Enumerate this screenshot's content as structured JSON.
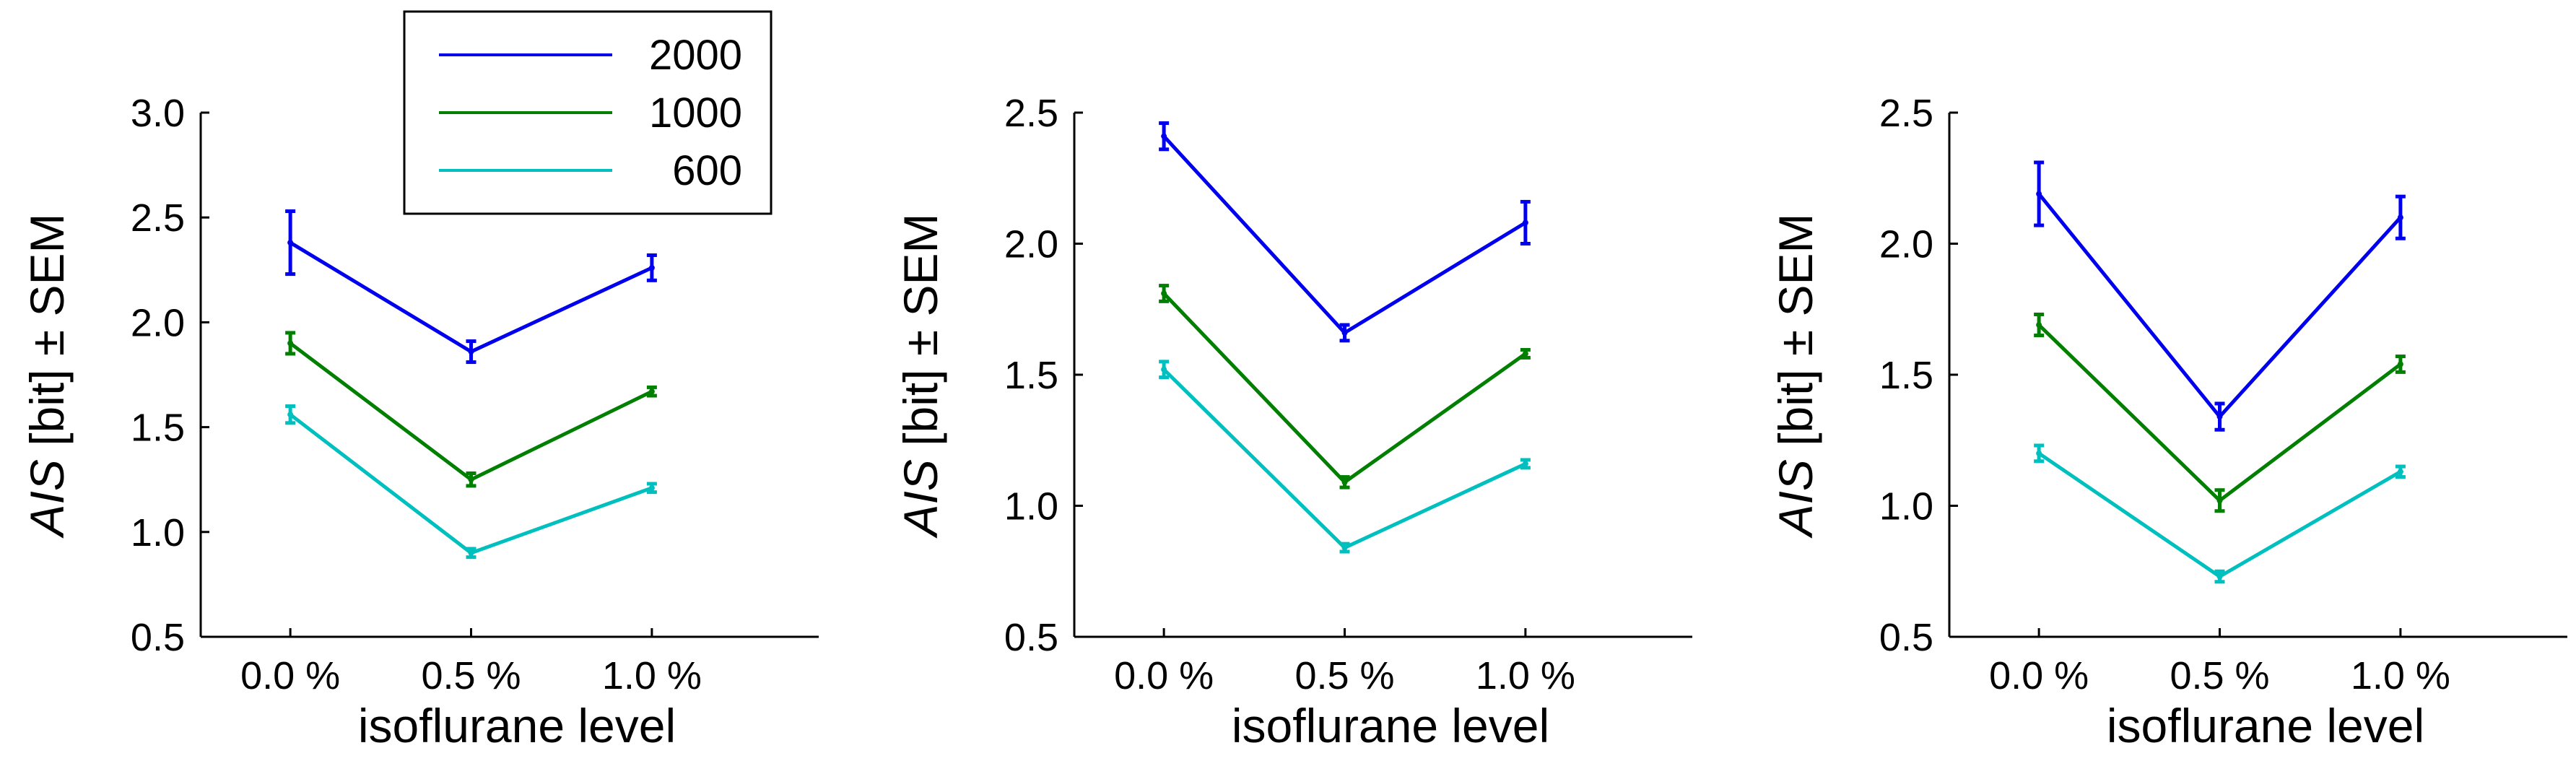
{
  "legend": {
    "entries": [
      {
        "label": "2000",
        "color": "#0000ee"
      },
      {
        "label": "1000",
        "color": "#007f00"
      },
      {
        "label": "600",
        "color": "#00bfbf"
      }
    ]
  },
  "chart_data": [
    {
      "type": "line",
      "categories": [
        "0.0 %",
        "0.5 %",
        "1.0 %"
      ],
      "xlabel": "isoflurane level",
      "ylabel_italic": "AIS",
      "ylabel_rest": " [bit] ± SEM",
      "ylim": [
        0.5,
        3.0
      ],
      "yticks": [
        0.5,
        1.0,
        1.5,
        2.0,
        2.5,
        3.0
      ],
      "ytick_labels": [
        "0.5",
        "1.0",
        "1.5",
        "2.0",
        "2.5",
        "3.0"
      ],
      "legend_position": "top",
      "series": [
        {
          "name": "2000",
          "color": "#0000ee",
          "values": [
            2.38,
            1.86,
            2.26
          ],
          "sem": [
            0.15,
            0.05,
            0.06
          ]
        },
        {
          "name": "1000",
          "color": "#007f00",
          "values": [
            1.9,
            1.25,
            1.67
          ],
          "sem": [
            0.05,
            0.03,
            0.02
          ]
        },
        {
          "name": "600",
          "color": "#00bfbf",
          "values": [
            1.56,
            0.9,
            1.21
          ],
          "sem": [
            0.04,
            0.02,
            0.02
          ]
        }
      ]
    },
    {
      "type": "line",
      "categories": [
        "0.0 %",
        "0.5 %",
        "1.0 %"
      ],
      "xlabel": "isoflurane level",
      "ylabel_italic": "AIS",
      "ylabel_rest": " [bit] ± SEM",
      "ylim": [
        0.5,
        2.5
      ],
      "yticks": [
        0.5,
        1.0,
        1.5,
        2.0,
        2.5
      ],
      "ytick_labels": [
        "0.5",
        "1.0",
        "1.5",
        "2.0",
        "2.5"
      ],
      "series": [
        {
          "name": "2000",
          "color": "#0000ee",
          "values": [
            2.41,
            1.66,
            2.08
          ],
          "sem": [
            0.05,
            0.03,
            0.08
          ]
        },
        {
          "name": "1000",
          "color": "#007f00",
          "values": [
            1.81,
            1.09,
            1.58
          ],
          "sem": [
            0.03,
            0.02,
            0.015
          ]
        },
        {
          "name": "600",
          "color": "#00bfbf",
          "values": [
            1.52,
            0.84,
            1.16
          ],
          "sem": [
            0.03,
            0.015,
            0.015
          ]
        }
      ]
    },
    {
      "type": "line",
      "categories": [
        "0.0 %",
        "0.5 %",
        "1.0 %"
      ],
      "xlabel": "isoflurane level",
      "ylabel_italic": "AIS",
      "ylabel_rest": " [bit] ± SEM",
      "ylim": [
        0.5,
        2.5
      ],
      "yticks": [
        0.5,
        1.0,
        1.5,
        2.0,
        2.5
      ],
      "ytick_labels": [
        "0.5",
        "1.0",
        "1.5",
        "2.0",
        "2.5"
      ],
      "series": [
        {
          "name": "2000",
          "color": "#0000ee",
          "values": [
            2.19,
            1.34,
            2.1
          ],
          "sem": [
            0.12,
            0.05,
            0.08
          ]
        },
        {
          "name": "1000",
          "color": "#007f00",
          "values": [
            1.69,
            1.02,
            1.54
          ],
          "sem": [
            0.04,
            0.04,
            0.03
          ]
        },
        {
          "name": "600",
          "color": "#00bfbf",
          "values": [
            1.2,
            0.73,
            1.13
          ],
          "sem": [
            0.03,
            0.02,
            0.02
          ]
        }
      ]
    }
  ]
}
